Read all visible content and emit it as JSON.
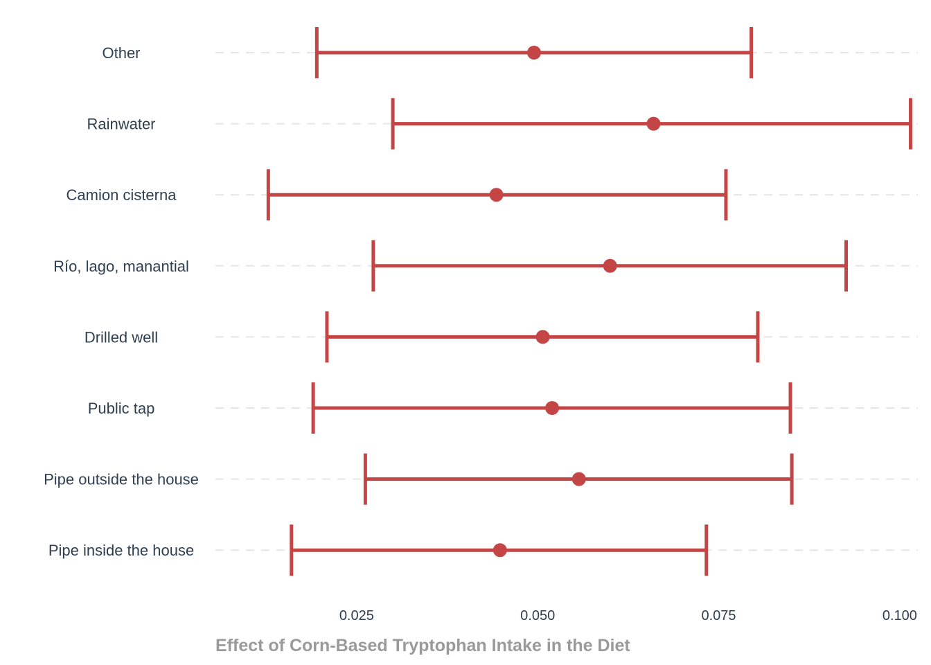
{
  "chart_data": {
    "type": "errorbar",
    "xlabel": "Effect of Corn-Based Tryptophan Intake in the Diet",
    "ylabel": "",
    "xlim": [
      0.0055,
      0.1025
    ],
    "xticks": [
      0.025,
      0.05,
      0.075,
      0.1
    ],
    "xtick_labels": [
      "0.025",
      "0.050",
      "0.075",
      "0.100"
    ],
    "grid": {
      "horizontal_dashed": true,
      "vertical": false
    },
    "color": "#c44545",
    "rows": [
      {
        "label": "Other",
        "estimate": 0.0495,
        "low": 0.0195,
        "high": 0.0795
      },
      {
        "label": "Rainwater",
        "estimate": 0.066,
        "low": 0.03,
        "high": 0.1015
      },
      {
        "label": "Camion cisterna",
        "estimate": 0.0443,
        "low": 0.0128,
        "high": 0.076
      },
      {
        "label": "Río, lago, manantial",
        "estimate": 0.06,
        "low": 0.0273,
        "high": 0.0926
      },
      {
        "label": "Drilled well",
        "estimate": 0.0507,
        "low": 0.0209,
        "high": 0.0804
      },
      {
        "label": "Public tap",
        "estimate": 0.052,
        "low": 0.019,
        "high": 0.0849
      },
      {
        "label": "Pipe outside the house",
        "estimate": 0.0557,
        "low": 0.0262,
        "high": 0.0851
      },
      {
        "label": "Pipe inside the house",
        "estimate": 0.0448,
        "low": 0.016,
        "high": 0.0733
      }
    ]
  }
}
